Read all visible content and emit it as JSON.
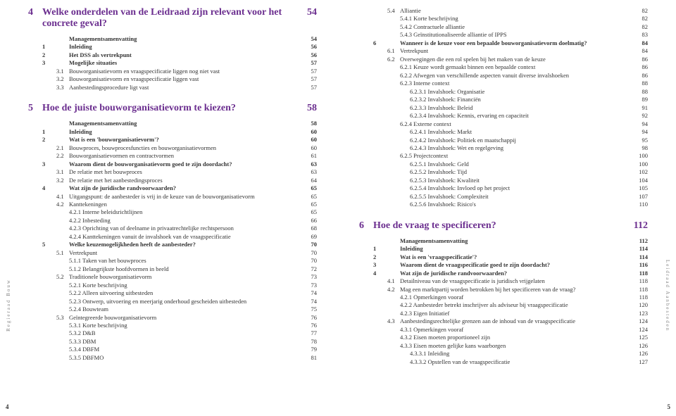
{
  "leftSide": "Regieraad Bouw",
  "rightSide": "Leidraad Aanbesteden",
  "leftPageNum": "4",
  "rightPageNum": "5",
  "ch4": {
    "num": "4",
    "title": "Welke onderdelen van de Leidraad zijn relevant voor het concrete geval?",
    "pg": "54",
    "rows": [
      {
        "n1": "",
        "n2": "",
        "t": "Managementsamenvatting",
        "p": "54",
        "b": 1
      },
      {
        "n1": "1",
        "n2": "",
        "t": "Inleiding",
        "p": "56",
        "b": 1
      },
      {
        "n1": "2",
        "n2": "",
        "t": "Het DSS als vertrekpunt",
        "p": "56",
        "b": 1
      },
      {
        "n1": "3",
        "n2": "",
        "t": "Mogelijke situaties",
        "p": "57",
        "b": 1
      },
      {
        "n1": "",
        "n2": "3.1",
        "t": "Bouworganisatievorm en vraagspecificatie liggen nog niet vast",
        "p": "57"
      },
      {
        "n1": "",
        "n2": "3.2",
        "t": "Bouworganisatievorm en vraagspecificatie liggen vast",
        "p": "57"
      },
      {
        "n1": "",
        "n2": "3.3",
        "t": "Aanbestedingsprocedure ligt vast",
        "p": "57"
      }
    ]
  },
  "ch5": {
    "num": "5",
    "title": "Hoe de juiste bouworganisatievorm te kiezen?",
    "pg": "58",
    "rows": [
      {
        "n1": "",
        "n2": "",
        "t": "Managementsamenvatting",
        "p": "58",
        "b": 1
      },
      {
        "n1": "1",
        "n2": "",
        "t": "Inleiding",
        "p": "60",
        "b": 1
      },
      {
        "n1": "2",
        "n2": "",
        "t": "Wat is een 'bouworganisatievorm'?",
        "p": "60",
        "b": 1
      },
      {
        "n1": "",
        "n2": "2.1",
        "t": "Bouwproces, bouwprocesfuncties en bouworganisatievormen",
        "p": "60"
      },
      {
        "n1": "",
        "n2": "2.2",
        "t": "Bouworganisatievormen en contractvormen",
        "p": "61"
      },
      {
        "n1": "3",
        "n2": "",
        "t": "Waarom dient de bouworganisatievorm goed te zijn doordacht?",
        "p": "63",
        "b": 1
      },
      {
        "n1": "",
        "n2": "3.1",
        "t": "De relatie met het bouwproces",
        "p": "63"
      },
      {
        "n1": "",
        "n2": "3.2",
        "t": "De relatie met het aanbestedingsproces",
        "p": "64"
      },
      {
        "n1": "4",
        "n2": "",
        "t": "Wat zijn de juridische randvoorwaarden?",
        "p": "65",
        "b": 1
      },
      {
        "n1": "",
        "n2": "4.1",
        "t": "Uitgangspunt: de aanbesteder is vrij in de keuze van de bouworganisatievorm",
        "p": "65"
      },
      {
        "n1": "",
        "n2": "4.2",
        "t": "Kanttekeningen",
        "p": "65"
      },
      {
        "n1": "",
        "n2": "",
        "t": "4.2.1   Interne beleidsrichtlijnen",
        "p": "65",
        "i": 1
      },
      {
        "n1": "",
        "n2": "",
        "t": "4.2.2   Inbesteding",
        "p": "66",
        "i": 1
      },
      {
        "n1": "",
        "n2": "",
        "t": "4.2.3   Oprichting van of deelname in privaatrechtelijke rechtspersoon",
        "p": "68",
        "i": 1
      },
      {
        "n1": "",
        "n2": "",
        "t": "4.2.4   Kanttekeningen vanuit de invalshoek van de vraagspecificatie",
        "p": "69",
        "i": 1
      },
      {
        "n1": "5",
        "n2": "",
        "t": "Welke keuzemogelijkheden heeft de aanbesteder?",
        "p": "70",
        "b": 1
      },
      {
        "n1": "",
        "n2": "5.1",
        "t": "Vertrekpunt",
        "p": "70"
      },
      {
        "n1": "",
        "n2": "",
        "t": "5.1.1   Taken van het bouwproces",
        "p": "70",
        "i": 1
      },
      {
        "n1": "",
        "n2": "",
        "t": "5.1.2   Belangrijkste hoofdvormen in beeld",
        "p": "72",
        "i": 1
      },
      {
        "n1": "",
        "n2": "5.2",
        "t": "Traditionele bouworganisatievorm",
        "p": "73"
      },
      {
        "n1": "",
        "n2": "",
        "t": "5.2.1   Korte beschrijving",
        "p": "73",
        "i": 1
      },
      {
        "n1": "",
        "n2": "",
        "t": "5.2.2   Alleen uitvoering uitbesteden",
        "p": "74",
        "i": 1
      },
      {
        "n1": "",
        "n2": "",
        "t": "5.2.3   Ontwerp, uitvoering en meerjarig onderhoud gescheiden uitbesteden",
        "p": "74",
        "i": 1
      },
      {
        "n1": "",
        "n2": "",
        "t": "5.2.4   Bouwteam",
        "p": "75",
        "i": 1
      },
      {
        "n1": "",
        "n2": "5.3",
        "t": "Geïntegreerde bouworganisatievorm",
        "p": "76"
      },
      {
        "n1": "",
        "n2": "",
        "t": "5.3.1   Korte beschrijving",
        "p": "76",
        "i": 1
      },
      {
        "n1": "",
        "n2": "",
        "t": "5.3.2   D&B",
        "p": "77",
        "i": 1
      },
      {
        "n1": "",
        "n2": "",
        "t": "5.3.3   DBM",
        "p": "78",
        "i": 1
      },
      {
        "n1": "",
        "n2": "",
        "t": "5.3.4   DBFM",
        "p": "79",
        "i": 1
      },
      {
        "n1": "",
        "n2": "",
        "t": "5.3.5   DBFMO",
        "p": "81",
        "i": 1
      }
    ]
  },
  "ch5cont": {
    "rows": [
      {
        "n1": "",
        "n2": "5.4",
        "t": "Alliantie",
        "p": "82"
      },
      {
        "n1": "",
        "n2": "",
        "t": "5.4.1   Korte beschrijving",
        "p": "82",
        "i": 1
      },
      {
        "n1": "",
        "n2": "",
        "t": "5.4.2   Contractuele alliantie",
        "p": "82",
        "i": 1
      },
      {
        "n1": "",
        "n2": "",
        "t": "5.4.3   Geïnstitutionaliseerde alliantie of IPPS",
        "p": "83",
        "i": 1
      },
      {
        "n1": "6",
        "n2": "",
        "t": "Wanneer is de keuze voor een bepaalde bouworganisatievorm doelmatig?",
        "p": "84",
        "b": 1
      },
      {
        "n1": "",
        "n2": "6.1",
        "t": "Vertrekpunt",
        "p": "84"
      },
      {
        "n1": "",
        "n2": "6.2",
        "t": "Overwegingen die een rol spelen bij het maken van de keuze",
        "p": "86"
      },
      {
        "n1": "",
        "n2": "",
        "t": "6.2.1   Keuze wordt gemaakt binnen een bepaalde context",
        "p": "86",
        "i": 1
      },
      {
        "n1": "",
        "n2": "",
        "t": "6.2.2   Afwegen van verschillende aspecten vanuit diverse invalshoeken",
        "p": "86",
        "i": 1
      },
      {
        "n1": "",
        "n2": "",
        "t": "6.2.3   Interne context",
        "p": "88",
        "i": 1
      },
      {
        "n1": "",
        "n2": "",
        "t": "6.2.3.1   Invalshoek: Organisatie",
        "p": "88",
        "i": 2
      },
      {
        "n1": "",
        "n2": "",
        "t": "6.2.3.2   Invalshoek: Financiën",
        "p": "89",
        "i": 2
      },
      {
        "n1": "",
        "n2": "",
        "t": "6.2.3.3   Invalshoek: Beleid",
        "p": "91",
        "i": 2
      },
      {
        "n1": "",
        "n2": "",
        "t": "6.2.3.4   Invalshoek: Kennis, ervaring en capaciteit",
        "p": "92",
        "i": 2
      },
      {
        "n1": "",
        "n2": "",
        "t": "6.2.4   Externe context",
        "p": "94",
        "i": 1
      },
      {
        "n1": "",
        "n2": "",
        "t": "6.2.4.1   Invalshoek: Markt",
        "p": "94",
        "i": 2
      },
      {
        "n1": "",
        "n2": "",
        "t": "6.2.4.2   Invalshoek: Politiek en maatschappij",
        "p": "95",
        "i": 2
      },
      {
        "n1": "",
        "n2": "",
        "t": "6.2.4.3   Invalshoek: Wet en regelgeving",
        "p": "98",
        "i": 2
      },
      {
        "n1": "",
        "n2": "",
        "t": "6.2.5   Projectcontext",
        "p": "100",
        "i": 1
      },
      {
        "n1": "",
        "n2": "",
        "t": "6.2.5.1   Invalshoek: Geld",
        "p": "100",
        "i": 2
      },
      {
        "n1": "",
        "n2": "",
        "t": "6.2.5.2   Invalshoek: Tijd",
        "p": "102",
        "i": 2
      },
      {
        "n1": "",
        "n2": "",
        "t": "6.2.5.3   Invalshoek: Kwaliteit",
        "p": "104",
        "i": 2
      },
      {
        "n1": "",
        "n2": "",
        "t": "6.2.5.4   Invalshoek: Invloed op het project",
        "p": "105",
        "i": 2
      },
      {
        "n1": "",
        "n2": "",
        "t": "6.2.5.5   Invalshoek: Complexiteit",
        "p": "107",
        "i": 2
      },
      {
        "n1": "",
        "n2": "",
        "t": "6.2.5.6   Invalshoek: Risico's",
        "p": "110",
        "i": 2
      }
    ]
  },
  "ch6": {
    "num": "6",
    "title": "Hoe de vraag te specificeren?",
    "pg": "112",
    "rows": [
      {
        "n1": "",
        "n2": "",
        "t": "Managementsamenvatting",
        "p": "112",
        "b": 1
      },
      {
        "n1": "1",
        "n2": "",
        "t": "Inleiding",
        "p": "114",
        "b": 1
      },
      {
        "n1": "2",
        "n2": "",
        "t": "Wat is een 'vraagspecificatie'?",
        "p": "114",
        "b": 1
      },
      {
        "n1": "3",
        "n2": "",
        "t": "Waarom dient de vraagspecificatie goed te zijn doordacht?",
        "p": "116",
        "b": 1
      },
      {
        "n1": "4",
        "n2": "",
        "t": "Wat zijn de juridische randvoorwaarden?",
        "p": "118",
        "b": 1
      },
      {
        "n1": "",
        "n2": "4.1",
        "t": "Detailniveau van de vraagspecificatie is juridisch vrijgelaten",
        "p": "118"
      },
      {
        "n1": "",
        "n2": "4.2",
        "t": "Mag een marktpartij worden betrokken bij het specificeren van de vraag?",
        "p": "118"
      },
      {
        "n1": "",
        "n2": "",
        "t": "4.2.1   Opmerkingen vooraf",
        "p": "118",
        "i": 1
      },
      {
        "n1": "",
        "n2": "",
        "t": "4.2.2   Aanbesteder betrekt inschrijver als adviseur bij vraagspecificatie",
        "p": "120",
        "i": 1
      },
      {
        "n1": "",
        "n2": "",
        "t": "4.2.3   Eigen Initiatief",
        "p": "123",
        "i": 1
      },
      {
        "n1": "",
        "n2": "4.3",
        "t": "Aanbestedingsrechtelijke grenzen aan de inhoud van de vraagspecificatie",
        "p": "124"
      },
      {
        "n1": "",
        "n2": "",
        "t": "4.3.1   Opmerkingen vooraf",
        "p": "124",
        "i": 1
      },
      {
        "n1": "",
        "n2": "",
        "t": "4.3.2   Eisen moeten proportioneel zijn",
        "p": "125",
        "i": 1
      },
      {
        "n1": "",
        "n2": "",
        "t": "4.3.3   Eisen moeten gelijke kans waarborgen",
        "p": "126",
        "i": 1
      },
      {
        "n1": "",
        "n2": "",
        "t": "4.3.3.1   Inleiding",
        "p": "126",
        "i": 2
      },
      {
        "n1": "",
        "n2": "",
        "t": "4.3.3.2   Opstellen van de vraagspecificatie",
        "p": "127",
        "i": 2
      }
    ]
  }
}
